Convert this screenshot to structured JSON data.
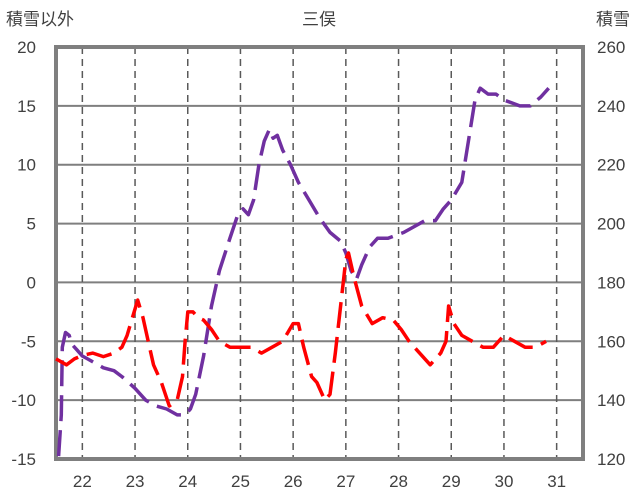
{
  "chart_data": {
    "type": "line",
    "title": "三俣",
    "ylabel_left": "積雪以外",
    "ylabel_right": "積雪",
    "x_ticks": [
      "22",
      "23",
      "24",
      "25",
      "26",
      "27",
      "28",
      "29",
      "30",
      "31"
    ],
    "x_range": [
      21.5,
      31.5
    ],
    "ylim_left": [
      -15,
      20
    ],
    "left_ticks": [
      "20",
      "15",
      "10",
      "5",
      "0",
      "-5",
      "-10",
      "-15"
    ],
    "ylim_right": [
      120,
      260
    ],
    "right_ticks": [
      "260",
      "240",
      "220",
      "200",
      "180",
      "160",
      "140",
      "120"
    ],
    "grid": true,
    "series": [
      {
        "color": "#7030a0",
        "axis": "right",
        "style": "dashed",
        "x": [
          21.55,
          21.6,
          21.62,
          21.68,
          21.75,
          21.8,
          21.9,
          22.0,
          22.1,
          22.2,
          22.4,
          22.6,
          22.75,
          23.0,
          23.2,
          23.4,
          23.6,
          23.8,
          23.95,
          24.05,
          24.15,
          24.3,
          24.45,
          24.6,
          24.8,
          24.95,
          25.05,
          25.15,
          25.25,
          25.35,
          25.45,
          25.55,
          25.62,
          25.7,
          25.8,
          25.95,
          26.1,
          26.3,
          26.5,
          26.7,
          26.9,
          27.0,
          27.1,
          27.2,
          27.3,
          27.45,
          27.6,
          27.8,
          27.95,
          28.1,
          28.3,
          28.5,
          28.7,
          28.85,
          29.0,
          29.2,
          29.45,
          29.55,
          29.7,
          29.85,
          30.0,
          30.15,
          30.3,
          30.5,
          30.7,
          30.85
        ],
        "y": [
          121,
          135,
          158,
          163,
          162,
          159,
          157,
          155,
          154,
          153,
          151,
          150,
          148,
          144,
          140,
          138,
          137,
          135,
          135,
          137,
          142,
          155,
          172,
          184,
          195,
          203,
          205,
          203,
          208,
          220,
          228,
          232,
          229,
          230,
          225,
          220,
          214,
          208,
          202,
          197,
          194,
          190,
          184,
          181,
          186,
          192,
          195,
          195,
          196,
          197,
          199,
          201,
          201,
          205,
          208,
          214,
          242,
          246,
          244,
          244,
          242,
          241,
          240,
          240,
          243,
          246
        ]
      },
      {
        "color": "#ff0000",
        "axis": "left",
        "style": "dashed",
        "x": [
          21.5,
          21.7,
          21.85,
          22.0,
          22.2,
          22.4,
          22.6,
          22.75,
          22.85,
          22.95,
          23.05,
          23.15,
          23.25,
          23.35,
          23.5,
          23.65,
          23.8,
          23.9,
          23.95,
          24.0,
          24.1,
          24.2,
          24.3,
          24.45,
          24.6,
          24.8,
          25.0,
          25.2,
          25.4,
          25.6,
          25.8,
          26.0,
          26.1,
          26.2,
          26.35,
          26.45,
          26.6,
          26.7,
          26.8,
          26.9,
          27.0,
          27.05,
          27.15,
          27.3,
          27.5,
          27.7,
          27.9,
          28.05,
          28.2,
          28.4,
          28.6,
          28.8,
          28.9,
          28.95,
          29.05,
          29.2,
          29.4,
          29.6,
          29.8,
          30.0,
          30.2,
          30.4,
          30.6,
          30.8
        ],
        "y": [
          -6.5,
          -7.0,
          -6.5,
          -6.2,
          -6.0,
          -6.3,
          -6.0,
          -5.5,
          -4.5,
          -3.0,
          -1.5,
          -3.0,
          -5.0,
          -7.0,
          -8.5,
          -10.5,
          -10.0,
          -8.0,
          -5.0,
          -2.5,
          -2.5,
          -3.0,
          -3.2,
          -4.0,
          -5.0,
          -5.5,
          -5.5,
          -5.5,
          -6.0,
          -5.5,
          -5.0,
          -3.5,
          -3.5,
          -5.5,
          -8.0,
          -8.5,
          -10.0,
          -9.5,
          -6.0,
          -2.0,
          2.0,
          2.5,
          0.5,
          -2.0,
          -3.5,
          -3.0,
          -3.2,
          -4.0,
          -5.0,
          -6.0,
          -7.0,
          -6.0,
          -5.0,
          -2.0,
          -3.5,
          -4.5,
          -5.0,
          -5.5,
          -5.5,
          -4.5,
          -5.0,
          -5.5,
          -5.5,
          -5.0
        ]
      }
    ]
  }
}
